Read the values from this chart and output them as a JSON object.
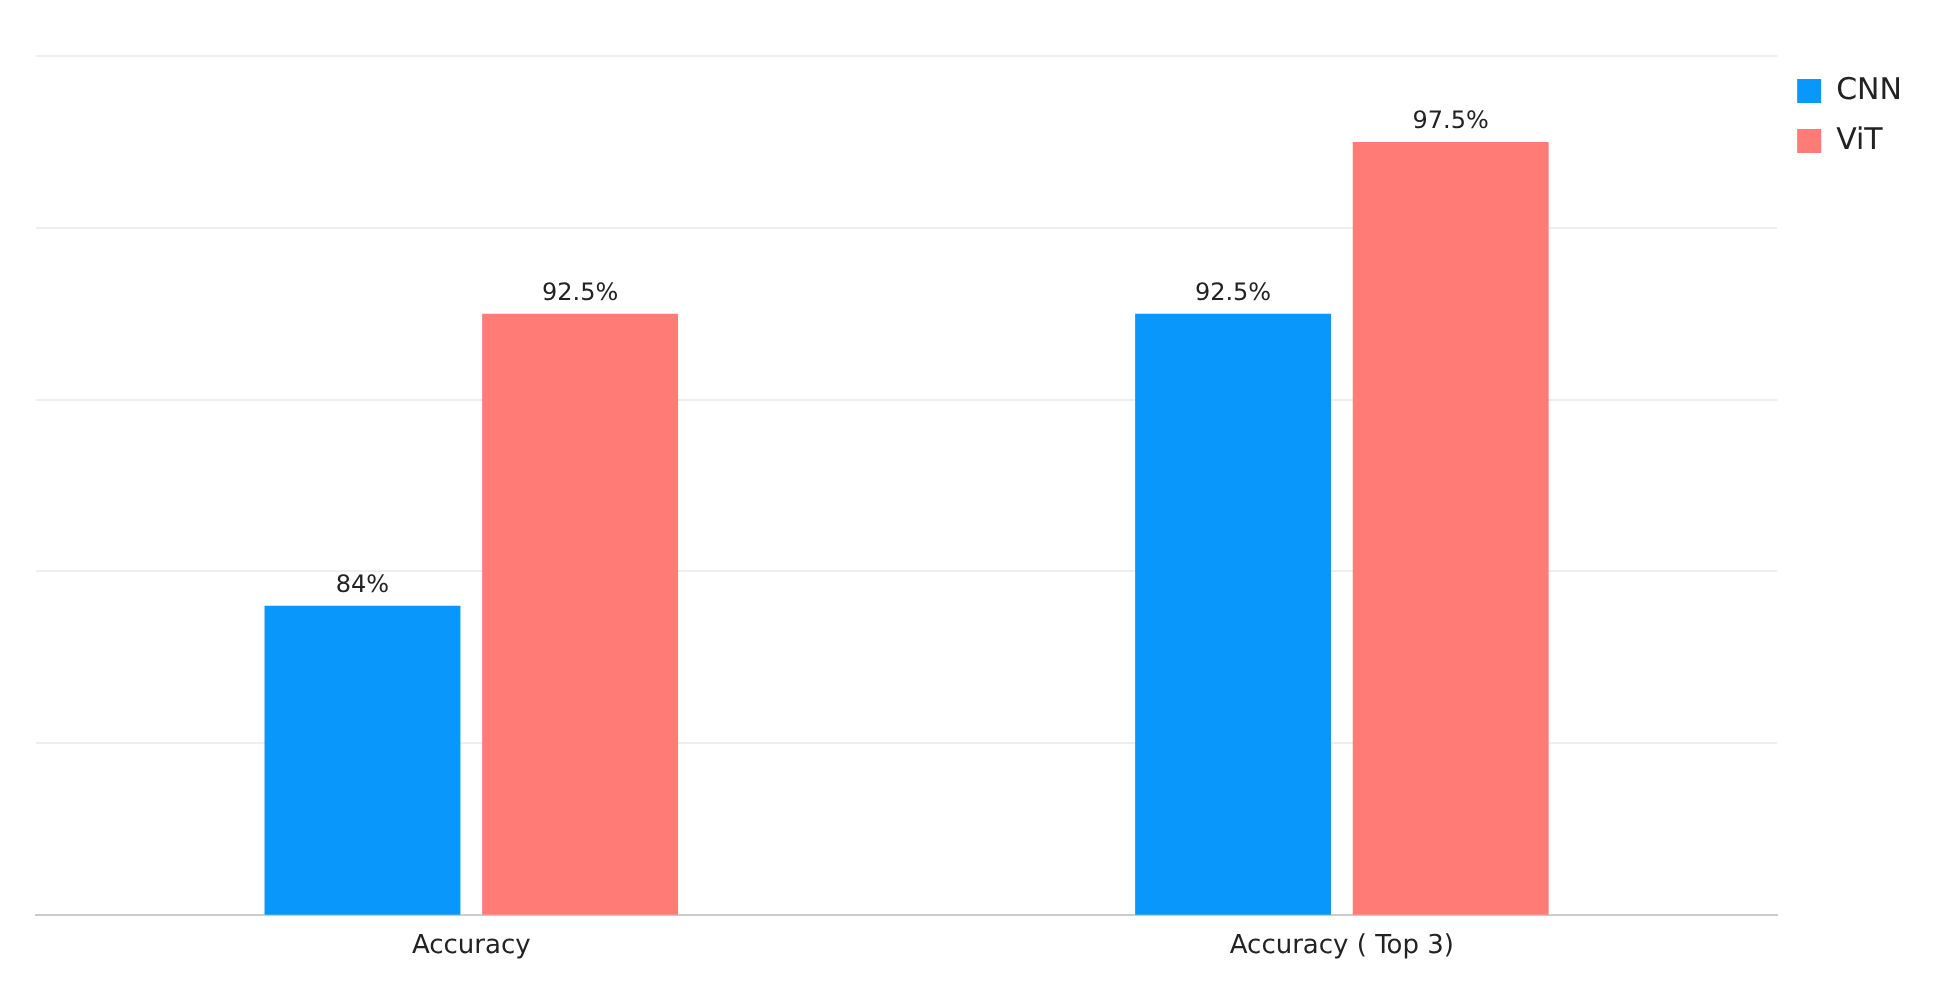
{
  "chart_data": {
    "type": "bar",
    "categories": [
      "Accuracy",
      "Accuracy ( Top 3)"
    ],
    "series": [
      {
        "name": "CNN",
        "color": "#0a97fb",
        "values": [
          84,
          92.5
        ],
        "value_labels": [
          "84%",
          "92.5%"
        ]
      },
      {
        "name": "ViT",
        "color": "#fe7b76",
        "values": [
          92.5,
          97.5
        ],
        "value_labels": [
          "92.5%",
          "97.5%"
        ]
      }
    ],
    "ylim": [
      75,
      100
    ],
    "yticks": [
      {
        "value": 75,
        "label": null
      },
      {
        "value": 80,
        "label": null
      },
      {
        "value": 85,
        "label": null
      },
      {
        "value": 90,
        "label": null
      },
      {
        "value": 95,
        "label": null
      },
      {
        "value": 100,
        "label": null
      }
    ],
    "tick_labels": "x",
    "grid": "y",
    "legend": "top right"
  }
}
